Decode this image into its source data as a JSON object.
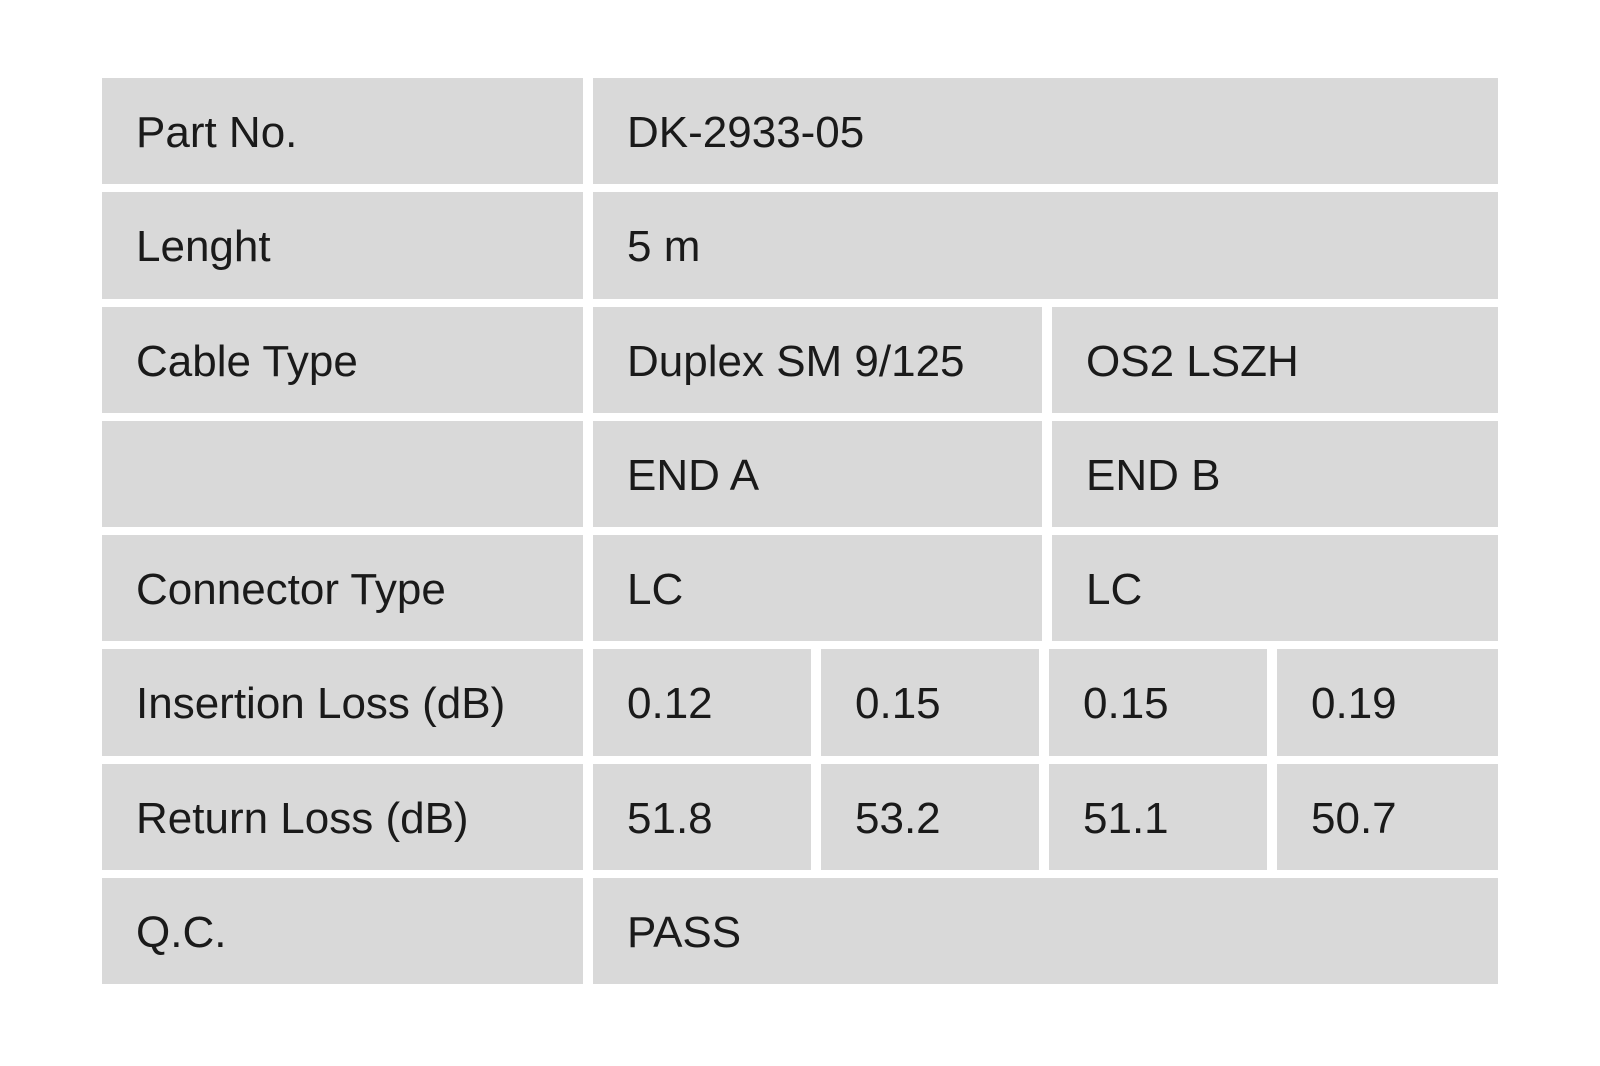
{
  "page": {
    "background": "#ffffff"
  },
  "table": {
    "cell_bg": "#d9d9d9",
    "text_color": "#1a1a1a",
    "rows": [
      {
        "type": "single",
        "label": "Part No.",
        "values": [
          "DK-2933-05"
        ]
      },
      {
        "type": "single",
        "label": "Lenght",
        "values": [
          "5 m"
        ]
      },
      {
        "type": "double",
        "label": "Cable Type",
        "values": [
          "Duplex SM 9/125",
          "OS2 LSZH"
        ]
      },
      {
        "type": "double",
        "label": "",
        "values": [
          "END A",
          "END B"
        ]
      },
      {
        "type": "double",
        "label": "Connector Type",
        "values": [
          "LC",
          "LC"
        ]
      },
      {
        "type": "quad",
        "label": "Insertion Loss (dB)",
        "values": [
          "0.12",
          "0.15",
          "0.15",
          "0.19"
        ]
      },
      {
        "type": "quad",
        "label": "Return Loss (dB)",
        "values": [
          "51.8",
          "53.2",
          "51.1",
          "50.7"
        ]
      },
      {
        "type": "single",
        "label": "Q.C.",
        "values": [
          "PASS"
        ]
      }
    ]
  }
}
